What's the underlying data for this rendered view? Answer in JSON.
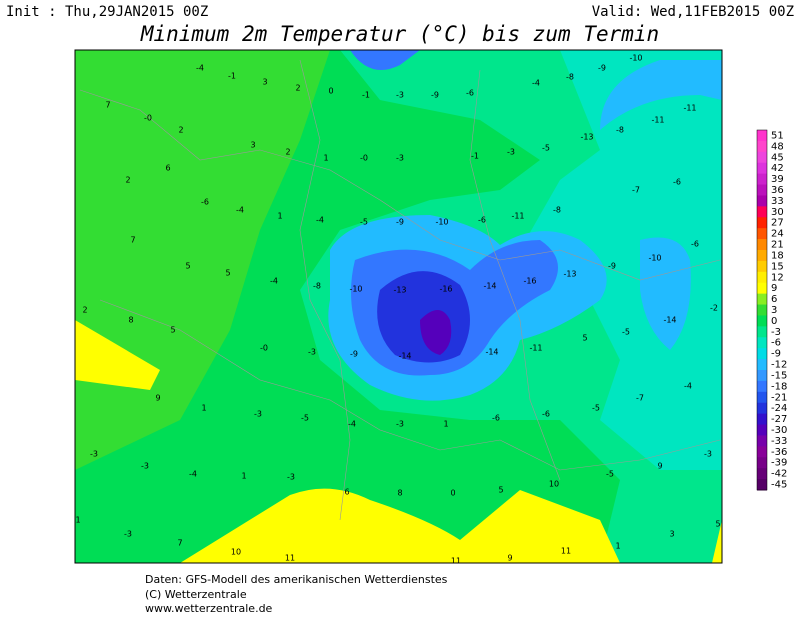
{
  "header": {
    "init": "Init : Thu,29JAN2015 00Z",
    "valid": "Valid: Wed,11FEB2015 00Z",
    "title": "Minimum 2m Temperatur (°C) bis zum Termin"
  },
  "map": {
    "labels": [
      "-4",
      "-1",
      "3",
      "2",
      "0",
      "-1",
      "-3",
      "-9",
      "-6",
      "-4",
      "-8",
      "-9",
      "-10",
      "7",
      "-0",
      "2",
      "3",
      "2",
      "1",
      "-0",
      "-3",
      "-1",
      "-3",
      "-5",
      "-13",
      "-8",
      "-11",
      "-11",
      "2",
      "6",
      "-6",
      "-4",
      "1",
      "-4",
      "-5",
      "-9",
      "-10",
      "-6",
      "-11",
      "-8",
      "-7",
      "-6",
      "7",
      "5",
      "5",
      "-4",
      "-8",
      "-10",
      "-13",
      "-16",
      "-14",
      "-16",
      "-13",
      "-9",
      "-10",
      "-6",
      "2",
      "8",
      "5",
      "-0",
      "-3",
      "-9",
      "-14",
      "-14",
      "-11",
      "5",
      "-5",
      "-14",
      "-2",
      "9",
      "1",
      "-3",
      "-5",
      "-4",
      "-3",
      "1",
      "-6",
      "-6",
      "-5",
      "-7",
      "-4",
      "-3",
      "-3",
      "-4",
      "1",
      "-3",
      "6",
      "8",
      "0",
      "5",
      "10",
      "-5",
      "9",
      "-3",
      "1",
      "-3",
      "7",
      "10",
      "11",
      "11",
      "9",
      "11",
      "1",
      "3",
      "5"
    ]
  },
  "legend": {
    "levels": [
      "51",
      "48",
      "45",
      "42",
      "39",
      "36",
      "33",
      "30",
      "27",
      "24",
      "21",
      "18",
      "15",
      "12",
      "9",
      "6",
      "3",
      "0",
      "-3",
      "-6",
      "-9",
      "-12",
      "-15",
      "-18",
      "-21",
      "-24",
      "-27",
      "-30",
      "-33",
      "-36",
      "-39",
      "-42",
      "-45"
    ],
    "colors": [
      "#ff33cc",
      "#ff44cc",
      "#ee44dd",
      "#dd33dd",
      "#cc22cc",
      "#bb11bb",
      "#aa00aa",
      "#ff0055",
      "#ff2200",
      "#ff5500",
      "#ff8800",
      "#ffaa00",
      "#ffcc00",
      "#ffee00",
      "#ffff00",
      "#88ee22",
      "#33dd33",
      "#00dd55",
      "#00e68c",
      "#00e6c0",
      "#00dce6",
      "#22bbff",
      "#3399ff",
      "#3377ff",
      "#2255ee",
      "#2233dd",
      "#3311cc",
      "#5500bb",
      "#7700aa",
      "#880099",
      "#770088",
      "#660077",
      "#550066"
    ]
  },
  "footer": {
    "line1": "Daten: GFS-Modell des amerikanischen Wetterdienstes",
    "line2": "(C) Wetterzentrale",
    "line3": "www.wetterzentrale.de"
  }
}
